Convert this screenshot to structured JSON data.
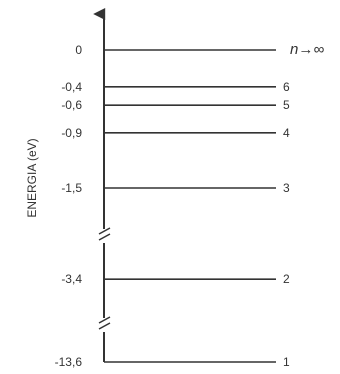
{
  "diagram": {
    "axis_label": "ENERGIA (eV)",
    "infinity_label": "n→∞",
    "levels": [
      {
        "energy": 0,
        "energy_label": "0",
        "n_label": ""
      },
      {
        "energy": -0.4,
        "energy_label": "-0,4",
        "n_label": "6"
      },
      {
        "energy": -0.6,
        "energy_label": "-0,6",
        "n_label": "5"
      },
      {
        "energy": -0.9,
        "energy_label": "-0,9",
        "n_label": "4"
      },
      {
        "energy": -1.5,
        "energy_label": "-1,5",
        "n_label": "3"
      },
      {
        "energy": -3.4,
        "energy_label": "-3,4",
        "n_label": "2"
      },
      {
        "energy": -13.6,
        "energy_label": "-13,6",
        "n_label": "1"
      }
    ],
    "axis_breaks": 2
  }
}
